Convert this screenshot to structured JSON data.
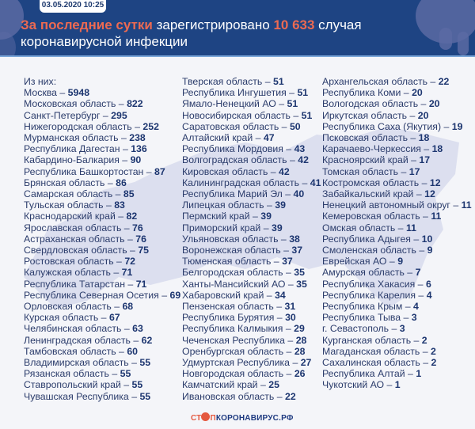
{
  "header": {
    "date": "03.05.2020 10:25",
    "title_accent": "За последние сутки",
    "title_mid": " зарегистрировано ",
    "title_number": "10 633",
    "title_end": " случая коронавирусной инфекции"
  },
  "list_intro": "Из них:",
  "separator": " – ",
  "columns": [
    [
      {
        "region": "Москва",
        "count": "5948"
      },
      {
        "region": "Московская область",
        "count": "822"
      },
      {
        "region": "Санкт-Петербург",
        "count": "295"
      },
      {
        "region": "Нижегородская область",
        "count": "252"
      },
      {
        "region": "Мурманская область",
        "count": "238"
      },
      {
        "region": "Республика Дагестан",
        "count": "136"
      },
      {
        "region": "Кабардино-Балкария",
        "count": "90"
      },
      {
        "region": "Республика Башкортостан",
        "count": "87"
      },
      {
        "region": "Брянская область",
        "count": "86"
      },
      {
        "region": "Самарская область",
        "count": "85"
      },
      {
        "region": "Тульская область",
        "count": "83"
      },
      {
        "region": "Краснодарский край",
        "count": "82"
      },
      {
        "region": "Ярославская область",
        "count": "76"
      },
      {
        "region": "Астраханская область",
        "count": "76"
      },
      {
        "region": "Свердловская область",
        "count": "75"
      },
      {
        "region": "Ростовская область",
        "count": "72"
      },
      {
        "region": "Калужская область",
        "count": "71"
      },
      {
        "region": "Республика Татарстан",
        "count": "71"
      },
      {
        "region": "Республика Северная Осетия",
        "count": "69"
      },
      {
        "region": "Орловская область",
        "count": "68"
      },
      {
        "region": "Курская область",
        "count": "67"
      },
      {
        "region": "Челябинская область",
        "count": "63"
      },
      {
        "region": "Ленинградская область",
        "count": "62"
      },
      {
        "region": "Тамбовская область",
        "count": "60"
      },
      {
        "region": "Владимирская область",
        "count": "55"
      },
      {
        "region": "Рязанская область",
        "count": "55"
      },
      {
        "region": "Ставропольский край",
        "count": "55"
      },
      {
        "region": "Чувашская Республика",
        "count": "55"
      }
    ],
    [
      {
        "region": "Тверская область",
        "count": "51"
      },
      {
        "region": "Республика Ингушетия",
        "count": "51"
      },
      {
        "region": "Ямало-Ненецкий АО",
        "count": "51"
      },
      {
        "region": "Новосибирская область",
        "count": "51"
      },
      {
        "region": "Саратовская область",
        "count": "50"
      },
      {
        "region": "Алтайский край",
        "count": "47"
      },
      {
        "region": "Республика Мордовия",
        "count": "43"
      },
      {
        "region": "Волгоградская область",
        "count": "42"
      },
      {
        "region": "Кировская область",
        "count": "42"
      },
      {
        "region": "Калининградская область",
        "count": "41"
      },
      {
        "region": "Республика Марий Эл",
        "count": "40"
      },
      {
        "region": "Липецкая область",
        "count": "39"
      },
      {
        "region": "Пермский край",
        "count": "39"
      },
      {
        "region": "Приморский край",
        "count": "39"
      },
      {
        "region": "Ульяновская область",
        "count": "38"
      },
      {
        "region": "Воронежская область",
        "count": "37"
      },
      {
        "region": "Тюменская область",
        "count": "37"
      },
      {
        "region": "Белгородская область",
        "count": "35"
      },
      {
        "region": "Ханты-Мансийский АО",
        "count": "35"
      },
      {
        "region": "Хабаровский край",
        "count": "34"
      },
      {
        "region": "Пензенская область",
        "count": "31"
      },
      {
        "region": "Республика Бурятия",
        "count": "30"
      },
      {
        "region": "Республика Калмыкия",
        "count": "29"
      },
      {
        "region": "Чеченская Республика",
        "count": "28"
      },
      {
        "region": "Оренбургская область",
        "count": "28"
      },
      {
        "region": "Удмуртская Республика",
        "count": "27"
      },
      {
        "region": "Новгородская область",
        "count": "26"
      },
      {
        "region": "Камчатский край",
        "count": "25"
      },
      {
        "region": "Ивановская область",
        "count": "22"
      }
    ],
    [
      {
        "region": "Архангельская область",
        "count": "22"
      },
      {
        "region": "Республика Коми",
        "count": "20"
      },
      {
        "region": "Вологодская область",
        "count": "20"
      },
      {
        "region": "Иркутская область",
        "count": "20"
      },
      {
        "region": "Республика Саха (Якутия)",
        "count": "19"
      },
      {
        "region": "Псковская область",
        "count": "18"
      },
      {
        "region": "Карачаево-Черкессия",
        "count": "18"
      },
      {
        "region": "Красноярский край",
        "count": "17"
      },
      {
        "region": "Томская область",
        "count": "17"
      },
      {
        "region": "Костромская область",
        "count": "12"
      },
      {
        "region": "Забайкальский край",
        "count": "12"
      },
      {
        "region": "Ненецкий автономный округ",
        "count": "11"
      },
      {
        "region": "Кемеровская область",
        "count": "11"
      },
      {
        "region": "Омская область",
        "count": "11"
      },
      {
        "region": "Республика Адыгея",
        "count": "10"
      },
      {
        "region": "Смоленская область",
        "count": "9"
      },
      {
        "region": "Еврейская АО",
        "count": "9"
      },
      {
        "region": "Амурская область",
        "count": "7"
      },
      {
        "region": "Республика Хакасия",
        "count": "6"
      },
      {
        "region": "Республика Карелия",
        "count": "4"
      },
      {
        "region": "Республика Крым",
        "count": "4"
      },
      {
        "region": "Республика Тыва",
        "count": "3"
      },
      {
        "region": "г. Севастополь",
        "count": "3"
      },
      {
        "region": "Курганская область",
        "count": "2"
      },
      {
        "region": "Магаданская область",
        "count": "2"
      },
      {
        "region": "Сахалинская область",
        "count": "2"
      },
      {
        "region": "Республика Алтай",
        "count": "1"
      },
      {
        "region": "Чукотский АО",
        "count": "1"
      }
    ]
  ],
  "footer": {
    "logo_prefix": "СТ",
    "logo_mid": "П",
    "logo_suffix": "КОРОНАВИРУС.РФ"
  },
  "colors": {
    "header_bg": "#1e4483",
    "accent": "#ec6a52",
    "text": "#2b3c6b",
    "number": "#1d3670",
    "page_bg": "#f4f5f9"
  }
}
